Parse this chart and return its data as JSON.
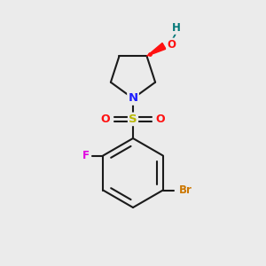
{
  "background_color": "#ebebeb",
  "bond_color": "#1a1a1a",
  "atom_colors": {
    "N": "#2020ff",
    "O": "#ff1010",
    "S": "#b8b800",
    "F": "#e000e0",
    "Br": "#cc7700",
    "H": "#007777",
    "OH_bond": "#ff1010"
  },
  "figsize": [
    3.0,
    3.0
  ],
  "dpi": 100,
  "xlim": [
    0,
    10
  ],
  "ylim": [
    0,
    10
  ]
}
